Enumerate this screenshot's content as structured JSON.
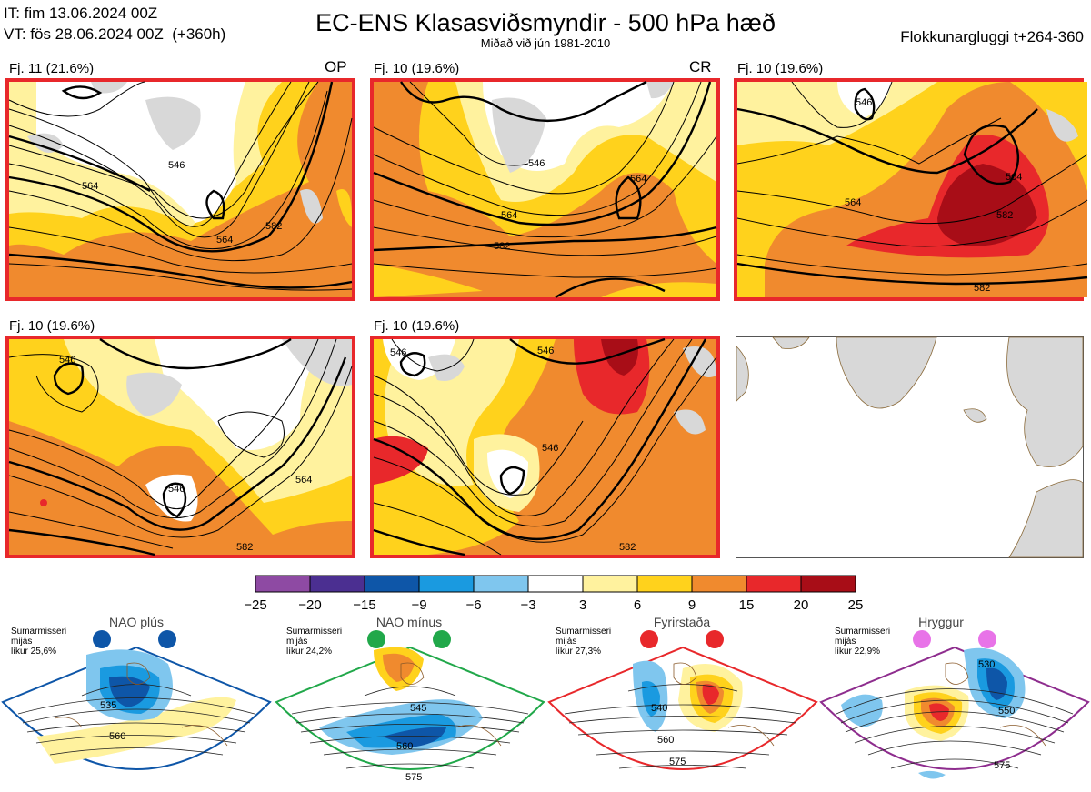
{
  "header": {
    "it_line": "IT: fim 13.06.2024 00Z",
    "vt_line": "VT: fös 28.06.2024 00Z  (+360h)",
    "title": "EC-ENS Klasasviðsmyndir - 500 hPa hæð",
    "subtitle": "Miðað við jún 1981-2010",
    "window": "Flokkunargluggi t+264-360"
  },
  "panels": [
    {
      "label": "Fj. 11 (21.6%)",
      "tag": "OP"
    },
    {
      "label": "Fj. 10 (19.6%)",
      "tag": "CR"
    },
    {
      "label": "Fj. 10 (19.6%)",
      "tag": ""
    },
    {
      "label": "Fj. 10 (19.6%)",
      "tag": ""
    },
    {
      "label": "Fj. 10 (19.6%)",
      "tag": ""
    }
  ],
  "contour_labels": [
    "546",
    "564",
    "582"
  ],
  "colorbar": {
    "ticks": [
      "−25",
      "−20",
      "−15",
      "−9",
      "−6",
      "−3",
      "3",
      "6",
      "9",
      "15",
      "20",
      "25"
    ],
    "colors": [
      "#8e4aa3",
      "#4b2f91",
      "#0e56a8",
      "#1a9ae0",
      "#7fc6ee",
      "#ffffff",
      "#fff29e",
      "#ffd21c",
      "#f08a2e",
      "#e8282b",
      "#a80d17"
    ]
  },
  "regimes": [
    {
      "name": "NAO plús",
      "info": "Sumarmisseri\nmijás\nlíkur 25,6%",
      "dot_color": "#0e56a8",
      "frame_color": "#0e56a8",
      "labels": [
        "535",
        "560"
      ]
    },
    {
      "name": "NAO mínus",
      "info": "Sumarmisseri\nmijás\nlíkur 24,2%",
      "dot_color": "#21a84a",
      "frame_color": "#21a84a",
      "labels": [
        "545",
        "560",
        "575"
      ]
    },
    {
      "name": "Fyrirstaða",
      "info": "Sumarmisseri\nmijás\nlíkur 27,3%",
      "dot_color": "#e8282b",
      "frame_color": "#e8282b",
      "labels": [
        "540",
        "560",
        "575"
      ]
    },
    {
      "name": "Hryggur",
      "info": "Sumarmisseri\nmijás\nlíkur 22,9%",
      "dot_color": "#e873e8",
      "frame_color": "#8e2d8e",
      "labels": [
        "530",
        "550",
        "575"
      ]
    }
  ]
}
